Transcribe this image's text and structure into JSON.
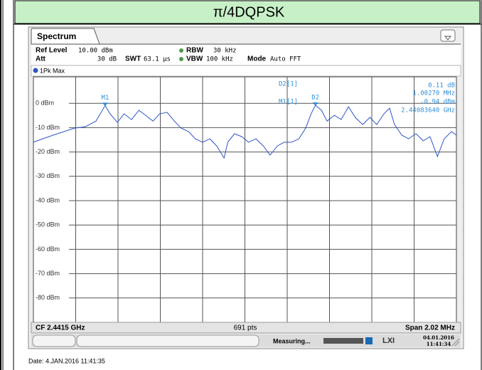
{
  "header": {
    "title": "π/4DQPSK"
  },
  "instrument": {
    "tab": "Spectrum",
    "ref_level_label": "Ref Level",
    "ref_level": "10.00 dBm",
    "att_label": "Att",
    "att": "30 dB",
    "swt_label": "SWT",
    "swt": "63.1 µs",
    "rbw_label": "RBW",
    "rbw": "30 kHz",
    "vbw_label": "VBW",
    "vbw": "100 kHz",
    "mode_label": "Mode",
    "mode": "Auto FFT",
    "trace_label": "1Pk Max",
    "marker_table": {
      "d2_name": "D2[1]",
      "d2_level": "0.11 dB",
      "d2_freq": "1.00270 MHz",
      "m1_name": "M1[1]",
      "m1_level": "-0.94 dBm",
      "m1_freq": "2.44083640 GHz"
    },
    "markers": [
      "M1",
      "D2"
    ],
    "footer_left": "CF 2.4415 GHz",
    "footer_center": "691 pts",
    "footer_right": "Span 2.02 MHz",
    "status": "Measuring...",
    "status_date": "04.01.2016",
    "status_time": "11:41:34"
  },
  "date_line": "Date: 4.JAN.2016  11:41:35",
  "chart_data": {
    "type": "line",
    "x": [
      0,
      15,
      32,
      50,
      67,
      85,
      102,
      117,
      125,
      137,
      148,
      160,
      172,
      183,
      195,
      206,
      218,
      230,
      241,
      253,
      264,
      276,
      288,
      299,
      311,
      317,
      328,
      340,
      351,
      363,
      375,
      386,
      398,
      409,
      421,
      433,
      444,
      453,
      460,
      470,
      479,
      491,
      502,
      514,
      525,
      537,
      549,
      560,
      572,
      581,
      589,
      601,
      612,
      624,
      636,
      647,
      659,
      670,
      682,
      690
    ],
    "series": [
      {
        "color": "#2f55c6",
        "values": [
          -16,
          -14.6,
          -13.1,
          -11.6,
          -10.2,
          -9.6,
          -7.3,
          -0.9,
          -4.3,
          -7.8,
          -4.3,
          -6.7,
          -2.9,
          -4.9,
          -7.3,
          -4.3,
          -3.7,
          -7.3,
          -10.2,
          -11.6,
          -14.6,
          -16,
          -14.6,
          -17.5,
          -22.5,
          -16,
          -12.5,
          -13.7,
          -16,
          -14.6,
          -17.5,
          -21.3,
          -17.5,
          -16,
          -16,
          -14.6,
          -10.2,
          -4.3,
          -0.8,
          -2.9,
          -7.3,
          -4.9,
          -6.7,
          -1.4,
          -5.8,
          -8.7,
          -5.8,
          -8.7,
          -4.3,
          -2,
          -8.7,
          -13.1,
          -14.6,
          -12.5,
          -15.4,
          -13.7,
          -21.9,
          -14.6,
          -11.6,
          -13.1
        ]
      }
    ],
    "xlim": [
      0,
      690
    ],
    "ylim": [
      -90,
      10
    ],
    "yticks": [
      {
        "value": 0,
        "label": "0 dBm"
      },
      {
        "value": -10,
        "label": "-10 dBm"
      },
      {
        "value": -20,
        "label": "-20 dBm"
      },
      {
        "value": -30,
        "label": "-30 dBm"
      },
      {
        "value": -40,
        "label": "-40 dBm"
      },
      {
        "value": -50,
        "label": "-50 dBm"
      },
      {
        "value": -60,
        "label": "-60 dBm"
      },
      {
        "value": -70,
        "label": "-70 dBm"
      },
      {
        "value": -80,
        "label": "-80 dBm"
      }
    ],
    "grid": true
  }
}
